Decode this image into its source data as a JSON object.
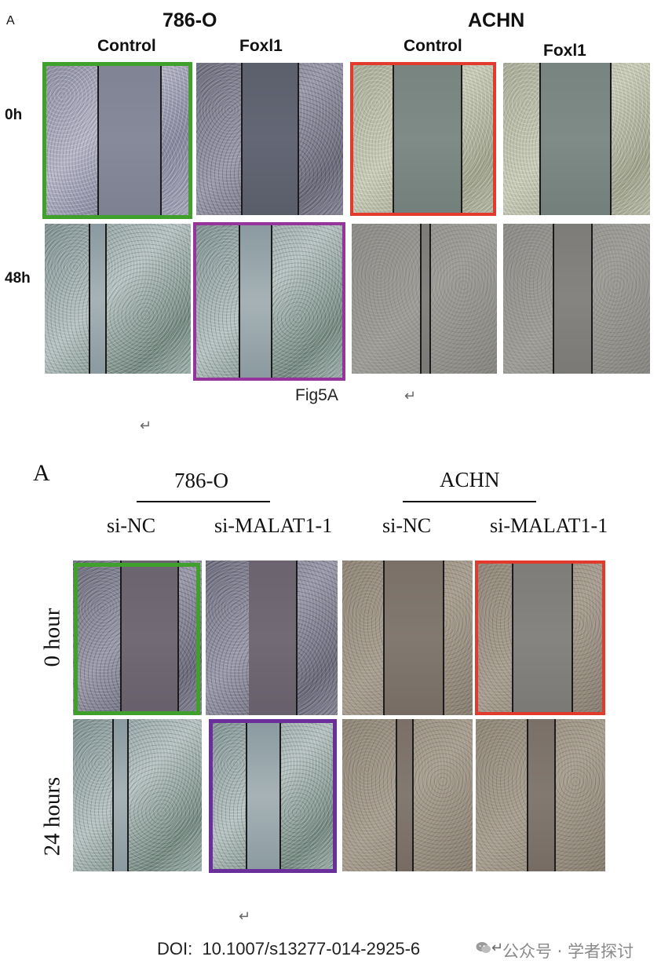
{
  "figure_a": {
    "panel_letter": "A",
    "groups": [
      "786-O",
      "ACHN"
    ],
    "columns": [
      "Control",
      "Foxl1",
      "Control",
      "Foxl1"
    ],
    "rows": [
      "0h",
      "48h"
    ],
    "caption": "Fig5A",
    "return_mark": "↵",
    "highlight_colors": {
      "green": "#3fa12c",
      "red": "#e23b2e",
      "purple": "#95359b"
    }
  },
  "figure_b": {
    "panel_letter": "A",
    "groups": [
      "786-O",
      "ACHN"
    ],
    "columns": [
      "si-NC",
      "si-MALAT1-1",
      "si-NC",
      "si-MALAT1-1"
    ],
    "rows": [
      "0 hour",
      "24 hours"
    ],
    "highlight_colors": {
      "green": "#3fa12c",
      "red": "#e23b2e",
      "purple": "#6b2f9b"
    }
  },
  "orphan_return_1": "↵",
  "orphan_return_2": "↵",
  "footer": {
    "doi": "DOI:  10.1007/s13277-014-2925-6",
    "return_mark": "↵",
    "watermark": "公众号 · 学者探讨"
  }
}
